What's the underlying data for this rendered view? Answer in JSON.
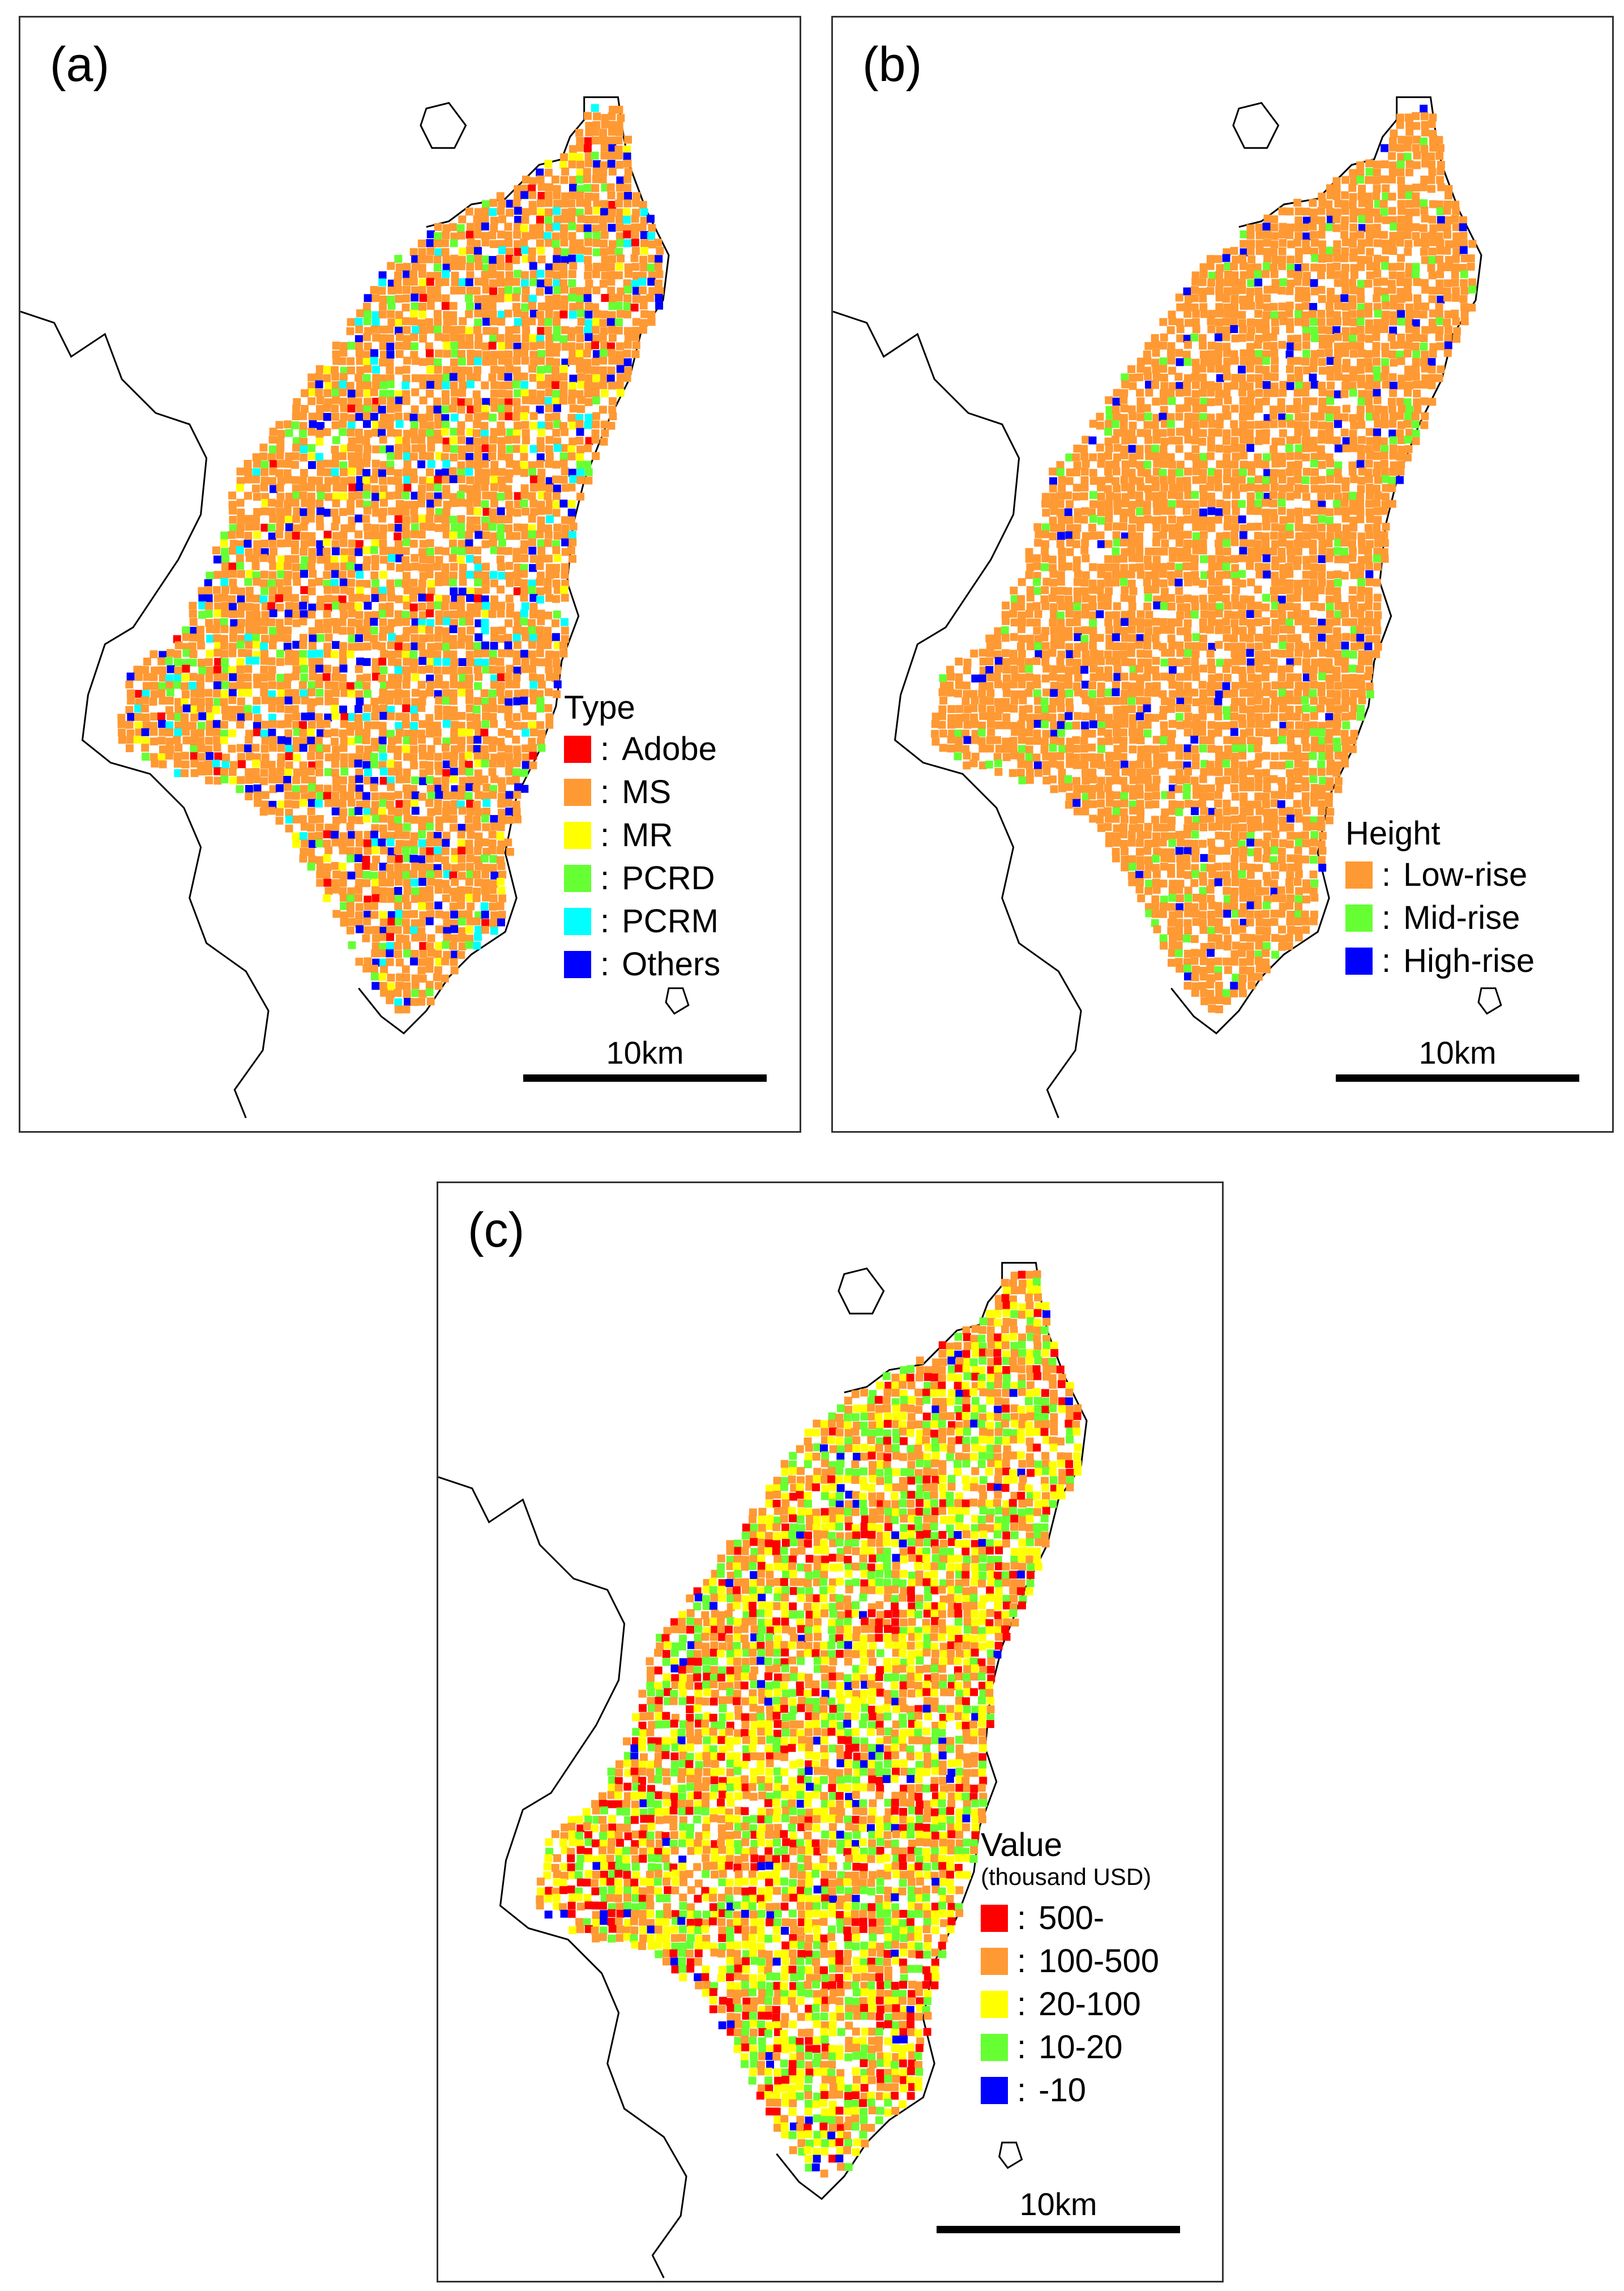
{
  "panels": [
    {
      "label": "(a)",
      "legend_title": "Type",
      "legend_subtitle": "",
      "items": [
        {
          "label": "Adobe",
          "color": "#ff0000"
        },
        {
          "label": "MS",
          "color": "#ff9933"
        },
        {
          "label": "MR",
          "color": "#ffff00"
        },
        {
          "label": "PCRD",
          "color": "#66ff33"
        },
        {
          "label": "PCRM",
          "color": "#00ffff"
        },
        {
          "label": "Others",
          "color": "#0000ff"
        }
      ],
      "scale": "10km"
    },
    {
      "label": "(b)",
      "legend_title": "Height",
      "legend_subtitle": "",
      "items": [
        {
          "label": "Low-rise",
          "color": "#ff9933"
        },
        {
          "label": "Mid-rise",
          "color": "#66ff33"
        },
        {
          "label": "High-rise",
          "color": "#0000ff"
        }
      ],
      "scale": "10km"
    },
    {
      "label": "(c)",
      "legend_title": "Value",
      "legend_subtitle": "(thousand USD)",
      "items": [
        {
          "label": "500-",
          "color": "#ff0000"
        },
        {
          "label": "100-500",
          "color": "#ff9933"
        },
        {
          "label": "20-100",
          "color": "#ffff00"
        },
        {
          "label": "10-20",
          "color": "#66ff33"
        },
        {
          "label": "-10",
          "color": "#0000ff"
        }
      ],
      "scale": "10km"
    }
  ]
}
